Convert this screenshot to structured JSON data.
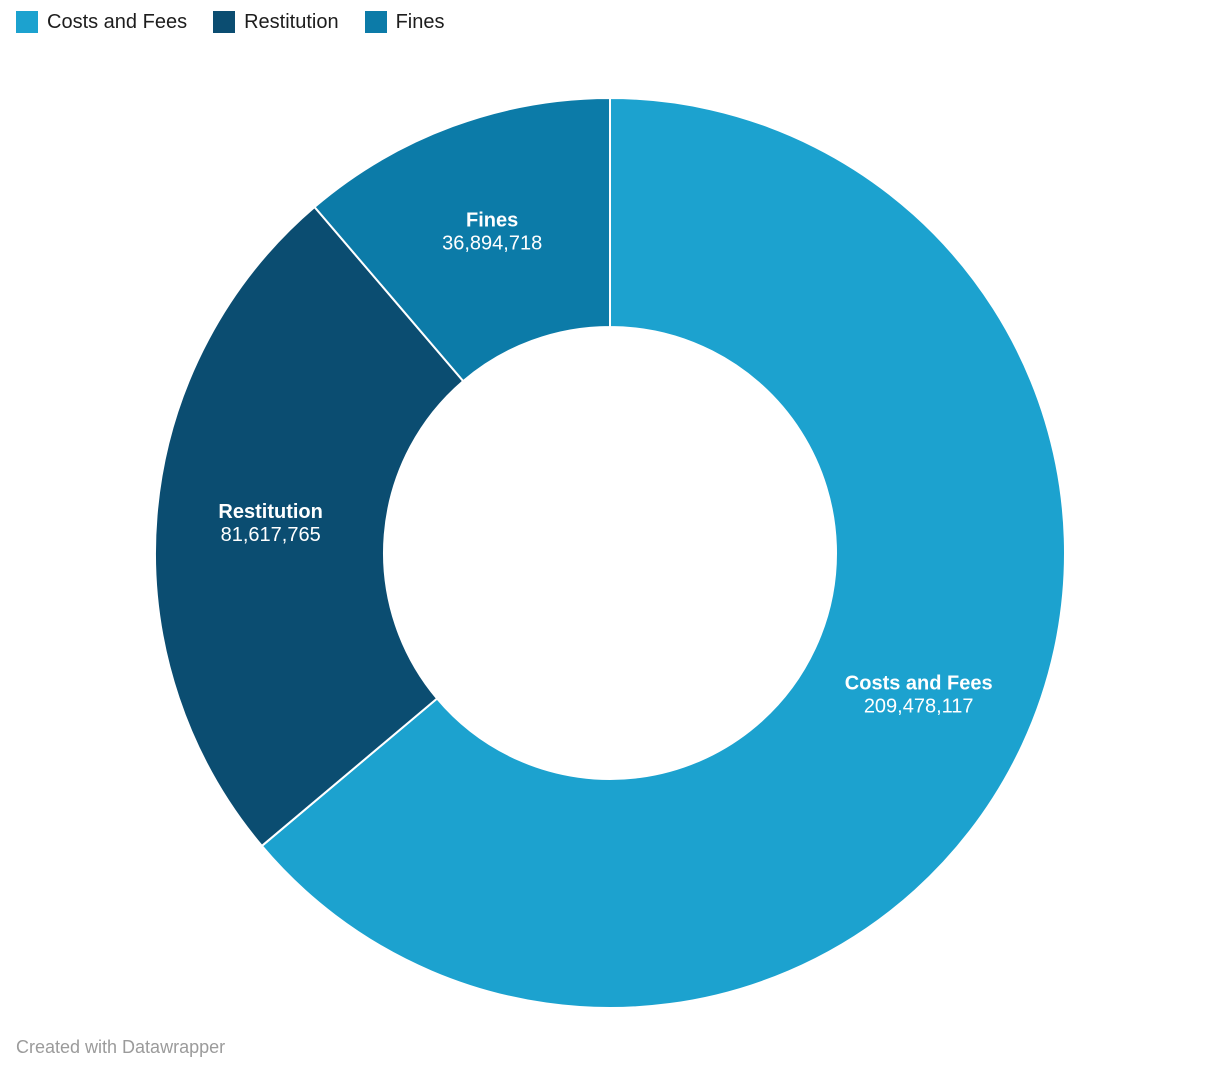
{
  "legend": {
    "items": [
      {
        "label": "Costs and Fees",
        "color": "#1CA2CF"
      },
      {
        "label": "Restitution",
        "color": "#0B4D71"
      },
      {
        "label": "Fines",
        "color": "#0C7BA8"
      }
    ]
  },
  "chart_data": {
    "type": "pie",
    "subtype": "donut",
    "title": "",
    "categories": [
      "Costs and Fees",
      "Restitution",
      "Fines"
    ],
    "values": [
      209478117,
      81617765,
      36894718
    ],
    "values_formatted": [
      "209,478,117",
      "81,617,765",
      "36,894,718"
    ],
    "colors": [
      "#1CA2CF",
      "#0B4D71",
      "#0C7BA8"
    ],
    "start_angle_deg": 0,
    "direction": "clockwise",
    "inner_radius_ratio": 0.5,
    "legend_position": "top-left",
    "label_position": "inside",
    "label_color": "#ffffff"
  },
  "footer": {
    "credit": "Created with Datawrapper"
  }
}
